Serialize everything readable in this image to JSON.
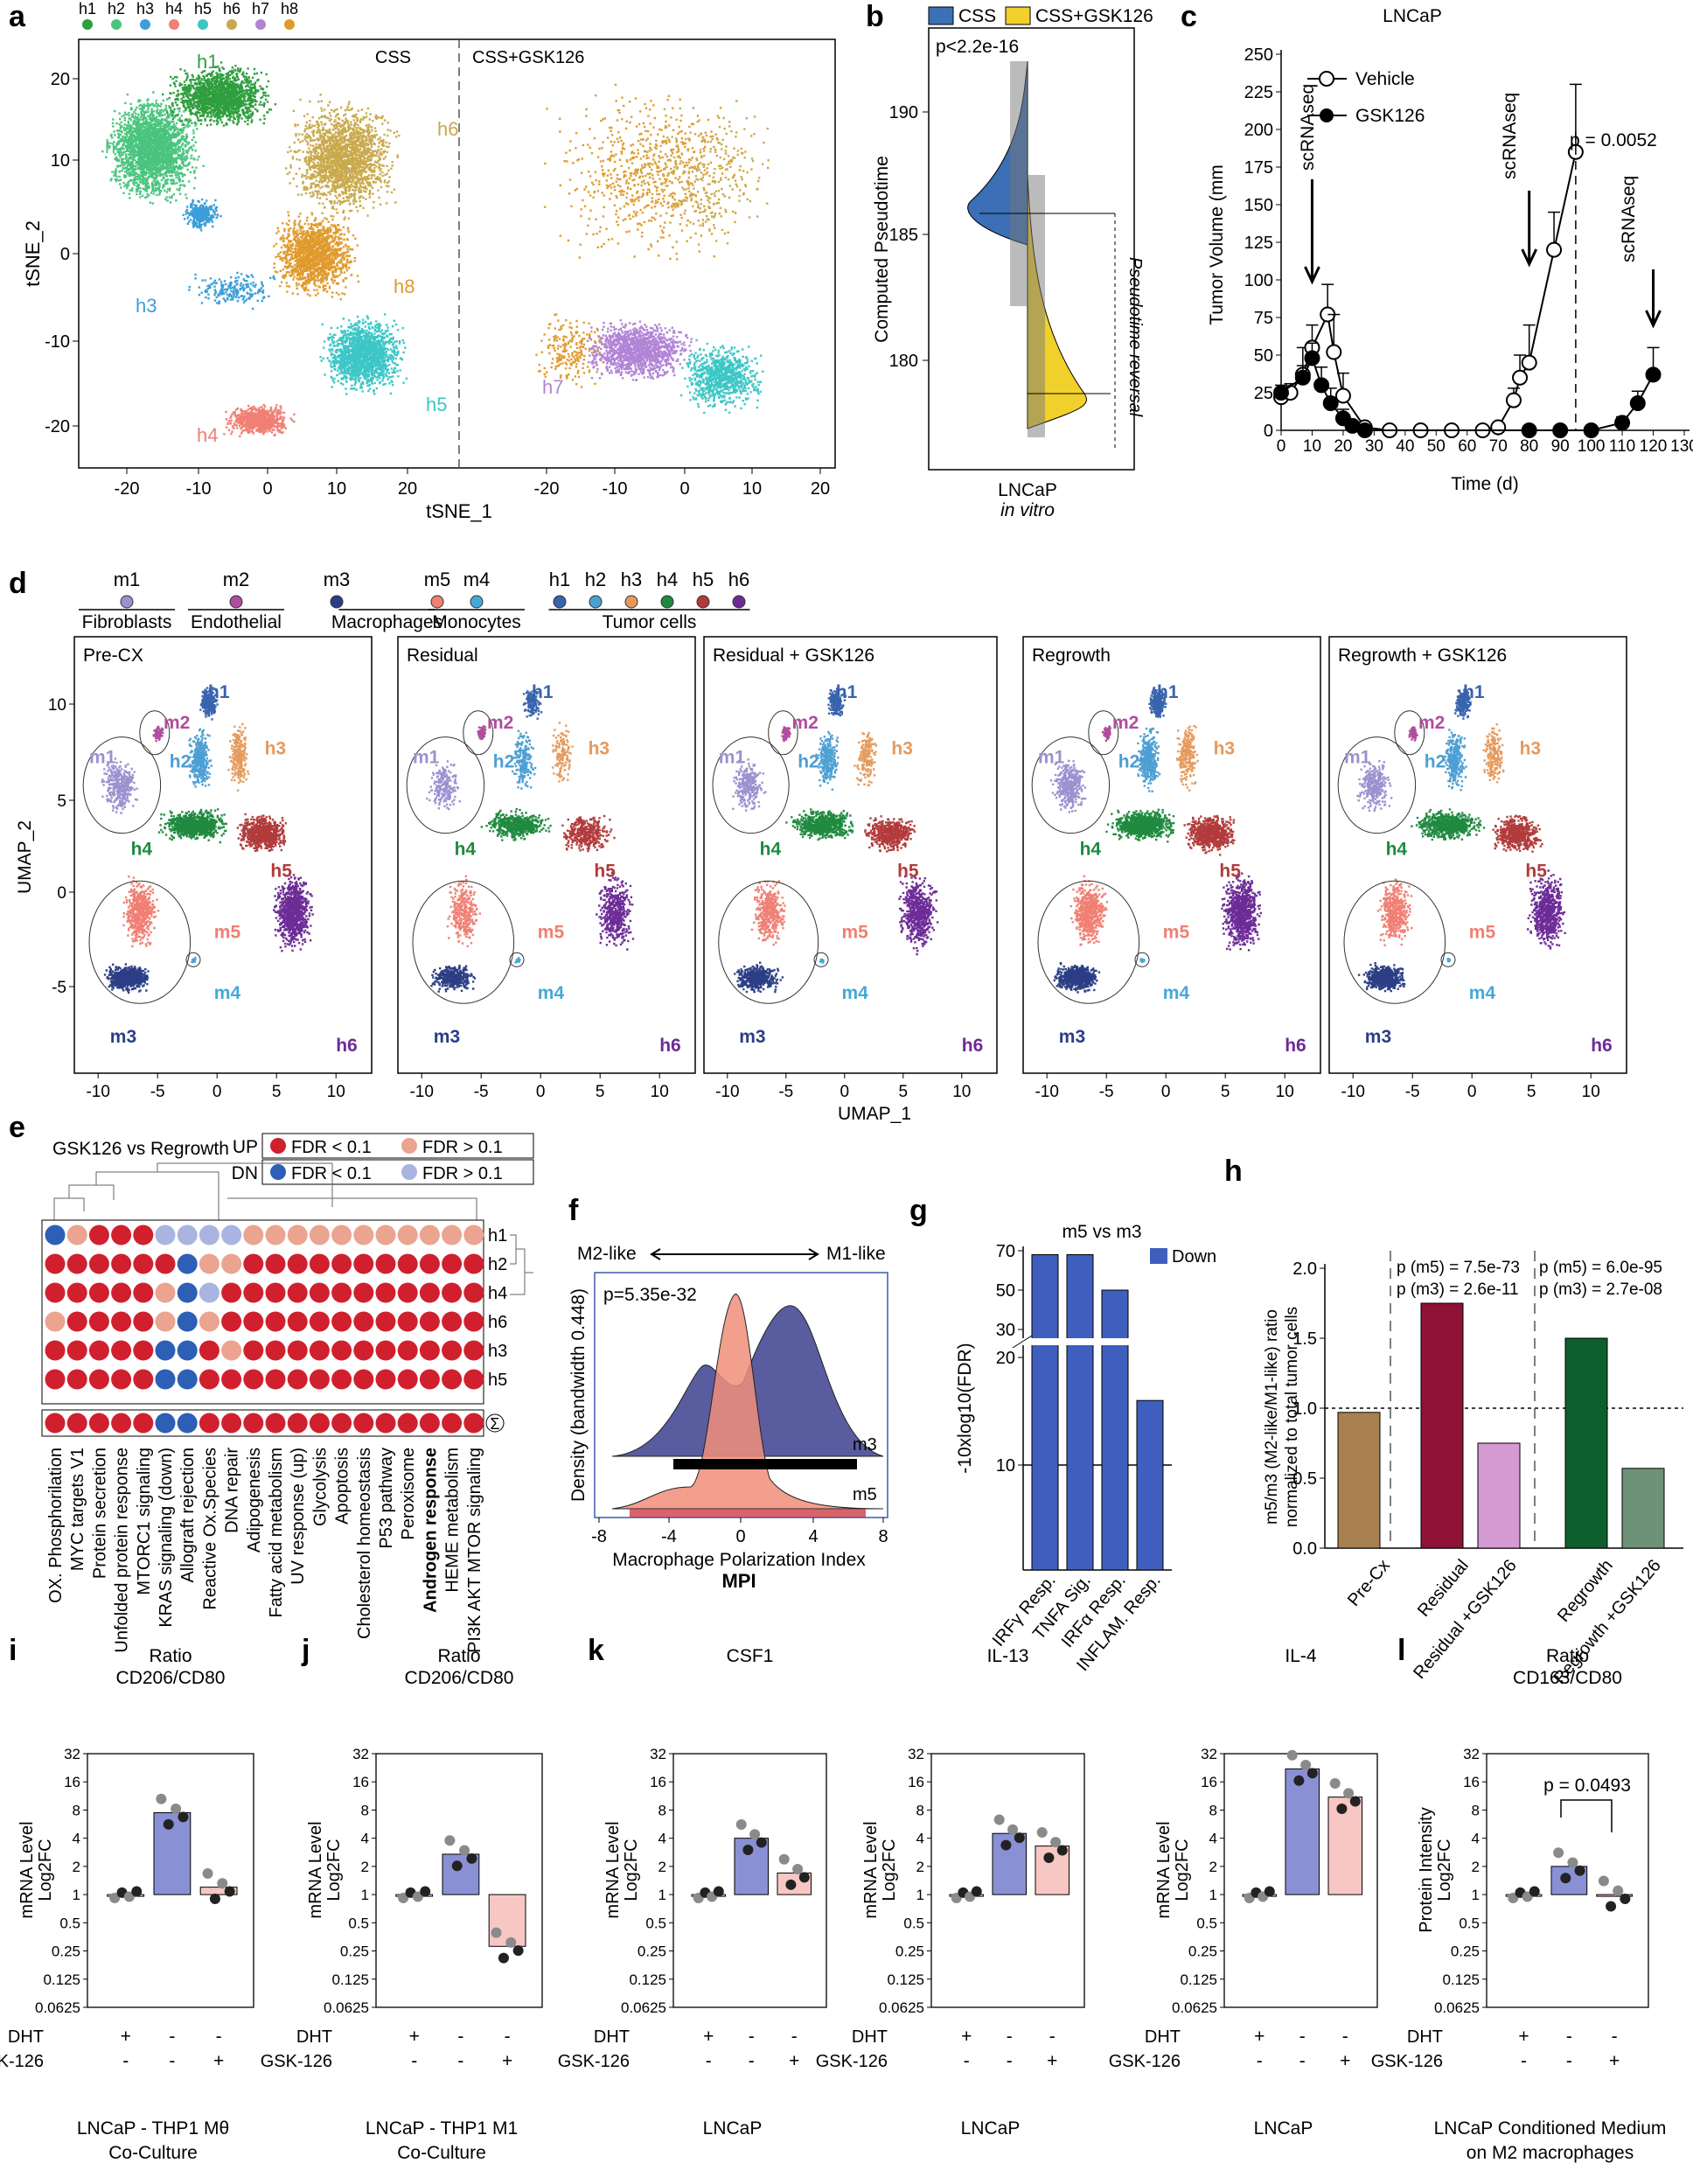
{
  "panel_letters": [
    "a",
    "b",
    "c",
    "d",
    "e",
    "f",
    "g",
    "h",
    "i",
    "j",
    "k",
    "l"
  ],
  "panel_a": {
    "legend": [
      "h1",
      "h2",
      "h3",
      "h4",
      "h5",
      "h6",
      "h7",
      "h8"
    ],
    "colors": [
      "#2e9e3e",
      "#49c47e",
      "#3a9ed8",
      "#f07f74",
      "#3cc6c6",
      "#c9a94b",
      "#b184d6",
      "#e09a2c"
    ],
    "left_title": "CSS",
    "right_title": "CSS+GSK126",
    "xlabel": "tSNE_1",
    "ylabel": "tSNE_2",
    "xticks": [
      "-20",
      "-10",
      "0",
      "10",
      "20"
    ],
    "yticks": [
      "20",
      "10",
      "0",
      "-10",
      "-20"
    ],
    "cluster_labels": [
      "h1",
      "h2",
      "h6",
      "h8",
      "h3",
      "h5",
      "h4",
      "h7"
    ]
  },
  "panel_b": {
    "legend": [
      "CSS",
      "CSS+GSK126"
    ],
    "colors": [
      "#3b6fb6",
      "#f2d02b"
    ],
    "pvalue": "p<2.2e-16",
    "ylabel": "Computed Pseudotime",
    "yticks": [
      "190",
      "185",
      "180"
    ],
    "xlabel": "LNCaP",
    "xlabel2": "in vitro",
    "annotation": "Pseudotime reversal"
  },
  "chart_data": {
    "type": "line",
    "title": "LNCaP",
    "xlabel": "Time (d)",
    "ylabel": "Tumor Volume (mm",
    "xlim": [
      0,
      130
    ],
    "ylim": [
      0,
      250
    ],
    "xticks": [
      "0",
      "10",
      "20",
      "30",
      "40",
      "50",
      "60",
      "70",
      "80",
      "90",
      "100",
      "110",
      "120",
      "130"
    ],
    "yticks": [
      "0",
      "25",
      "50",
      "75",
      "100",
      "125",
      "150",
      "175",
      "200",
      "225",
      "250"
    ],
    "series": [
      {
        "name": "Vehicle",
        "x": [
          0,
          3,
          7,
          10,
          15,
          17,
          20,
          27,
          35,
          45,
          55,
          65,
          70,
          75,
          77,
          80,
          88,
          95
        ],
        "y": [
          22,
          25,
          37,
          55,
          77,
          52,
          23,
          2,
          0,
          0,
          0,
          0,
          2,
          20,
          35,
          45,
          120,
          185
        ],
        "err": [
          4,
          6,
          18,
          15,
          20,
          25,
          15,
          2,
          0,
          0,
          0,
          0,
          2,
          8,
          15,
          25,
          25,
          45
        ]
      },
      {
        "name": "GSK126",
        "x": [
          0,
          7,
          10,
          13,
          16,
          20,
          23,
          27,
          80,
          90,
          100,
          110,
          115,
          120
        ],
        "y": [
          25,
          35,
          48,
          30,
          18,
          8,
          3,
          0,
          0,
          0,
          0,
          5,
          18,
          37
        ],
        "err": [
          5,
          8,
          10,
          12,
          10,
          6,
          2,
          0,
          0,
          0,
          0,
          4,
          8,
          18
        ]
      }
    ],
    "annotations": [
      "scRNAseq",
      "scRNAseq",
      "scRNAseq",
      "p = 0.0052"
    ]
  },
  "panel_d": {
    "legend_groups": [
      {
        "label": "Fibroblasts",
        "items": [
          "m1"
        ]
      },
      {
        "label": "Endothelial",
        "items": [
          "m2"
        ]
      },
      {
        "label": "Macrophages",
        "items": [
          "m3",
          "m5"
        ]
      },
      {
        "label": "Monocytes",
        "items": [
          "m4"
        ]
      },
      {
        "label": "Tumor cells",
        "items": [
          "h1",
          "h2",
          "h3",
          "h4",
          "h5",
          "h6"
        ]
      }
    ],
    "colors": {
      "m1": "#9c90cf",
      "m2": "#b04d9d",
      "m3": "#2b3e85",
      "m5": "#f07f74",
      "m4": "#46a8d6",
      "h1": "#3863ad",
      "h2": "#4c9fd3",
      "h3": "#e59a5d",
      "h4": "#1f8a3f",
      "h5": "#b23a3a",
      "h6": "#6c2b97"
    },
    "panels": [
      "Pre-CX",
      "Residual",
      "Residual + GSK126",
      "Regrowth",
      "Regrowth + GSK126"
    ],
    "xlabel": "UMAP_1",
    "ylabel": "UMAP_2",
    "xticks": [
      "-10",
      "-5",
      "0",
      "5",
      "10"
    ],
    "yticks": [
      "10",
      "5",
      "0",
      "-5"
    ],
    "cluster_labels": [
      "h1",
      "h2",
      "h3",
      "h4",
      "h5",
      "h6",
      "m1",
      "m2",
      "m3",
      "m4",
      "m5"
    ]
  },
  "panel_e": {
    "title": "GSK126 vs Regrowth",
    "legend": [
      {
        "dir": "UP",
        "sig": "FDR < 0.1",
        "ns": "FDR > 0.1",
        "sig_color": "#d0202e",
        "ns_color": "#eaa48f"
      },
      {
        "dir": "DN",
        "sig": "FDR < 0.1",
        "ns": "FDR > 0.1",
        "sig_color": "#2c5fb5",
        "ns_color": "#a9b4e0"
      }
    ],
    "rows": [
      "h1",
      "h2",
      "h4",
      "h6",
      "h3",
      "h5"
    ],
    "sum_symbol": "Σ",
    "pathways": [
      "OX. Phosphorilation",
      "MYC targets V1",
      "Protein secretion",
      "Unfolded protein response",
      "MTORC1 signaling",
      "KRAS signaling (down)",
      "Allograft rejection",
      "Reactive Ox.Species",
      "DNA repair",
      "Adipogenesis",
      "Fatty acid metabolism",
      "UV response (up)",
      "Glycolysis",
      "Apoptosis",
      "Cholesterol homeostasis",
      "P53 pathway",
      "Peroxisome",
      "Androgen response",
      "HEME metabolism",
      "PI3K AKT MTOR signaling"
    ],
    "matrix": [
      [
        "DS",
        "UN",
        "US",
        "US",
        "US",
        "DN",
        "DN",
        "DN",
        "DN",
        "UN",
        "UN",
        "UN",
        "UN",
        "UN",
        "UN",
        "UN",
        "UN",
        "UN",
        "UN",
        "UN"
      ],
      [
        "US",
        "US",
        "US",
        "US",
        "US",
        "US",
        "DS",
        "UN",
        "UN",
        "US",
        "US",
        "US",
        "US",
        "US",
        "US",
        "US",
        "US",
        "US",
        "US",
        "US"
      ],
      [
        "US",
        "US",
        "US",
        "US",
        "US",
        "UN",
        "DS",
        "DN",
        "US",
        "US",
        "US",
        "US",
        "US",
        "US",
        "US",
        "US",
        "US",
        "US",
        "US",
        "US"
      ],
      [
        "UN",
        "US",
        "US",
        "US",
        "US",
        "UN",
        "DS",
        "UN",
        "US",
        "US",
        "US",
        "US",
        "US",
        "US",
        "US",
        "US",
        "US",
        "US",
        "US",
        "US"
      ],
      [
        "US",
        "US",
        "US",
        "US",
        "US",
        "DS",
        "DS",
        "US",
        "UN",
        "US",
        "US",
        "US",
        "US",
        "US",
        "US",
        "US",
        "US",
        "US",
        "US",
        "US"
      ],
      [
        "US",
        "US",
        "US",
        "US",
        "US",
        "DS",
        "DS",
        "US",
        "US",
        "US",
        "US",
        "US",
        "US",
        "US",
        "US",
        "US",
        "US",
        "US",
        "US",
        "US"
      ]
    ],
    "sum_row": [
      "US",
      "US",
      "US",
      "US",
      "US",
      "DS",
      "DS",
      "US",
      "US",
      "US",
      "US",
      "US",
      "US",
      "US",
      "US",
      "US",
      "US",
      "US",
      "US",
      "US"
    ]
  },
  "panel_f": {
    "left": "M2-like",
    "right": "M1-like",
    "pvalue": "p=5.35e-32",
    "ylabel": "Density (bandwidth 0.448)",
    "xlabel": "Macrophage Polarization Index",
    "xlabel2": "MPI",
    "xticks": [
      "-8",
      "-4",
      "0",
      "4",
      "8"
    ],
    "series": [
      "m3",
      "m5"
    ],
    "colors": [
      "#3c3f8e",
      "#f08e7a"
    ]
  },
  "panel_g": {
    "title": "m5 vs m3",
    "legend": "Down",
    "ylabel": "-10xlog10(FDR)",
    "yticks": [
      "70",
      "50",
      "30",
      "20",
      "10"
    ],
    "categories": [
      "IRFγ Resp.",
      "TNFA Sig.",
      "IRFα Resp.",
      "INFLAM. Resp."
    ],
    "values": [
      68,
      68,
      50,
      16
    ],
    "color": "#3f5ebd"
  },
  "panel_h": {
    "ylabel": "m5/m3 (M2-like/M1-like) ratio",
    "ylabel2": "normalized to total tumor cells",
    "yticks": [
      "2.0",
      "1.5",
      "1.0",
      "0.5",
      "0.0"
    ],
    "categories": [
      "Pre-Cx",
      "Residual",
      "Residual +GSK126",
      "Regrowth",
      "Regrowth +GSK126"
    ],
    "values": [
      0.97,
      1.75,
      0.75,
      1.5,
      0.57
    ],
    "colors": [
      "#a8804f",
      "#8e1236",
      "#d59ad2",
      "#0f5e2d",
      "#6e9178"
    ],
    "annot1": [
      "p (m5) = 7.5e-73",
      "p (m3) = 2.6e-11"
    ],
    "annot2": [
      "p (m5) = 6.0e-95",
      "p (m3) = 2.7e-08"
    ]
  },
  "bar_panels": {
    "yticks": [
      "32",
      "16",
      "8",
      "4",
      "2",
      "1",
      "0.5",
      "0.25",
      "0.125",
      "0.0625"
    ],
    "dht_label": "DHT",
    "gsk_label": "GSK-126",
    "row_dht": [
      "+",
      "-",
      "-"
    ],
    "row_gsk": [
      "-",
      "-",
      "+"
    ]
  },
  "panel_i": {
    "title1": "Ratio",
    "title2": "CD206/CD80",
    "ylabel1": "mRNA Level",
    "ylabel2": "Log2FC",
    "values": [
      1,
      7.5,
      1.2
    ],
    "caption1": "LNCaP - THP1 Mθ",
    "caption2": "Co-Culture"
  },
  "panel_j": {
    "title1": "Ratio",
    "title2": "CD206/CD80",
    "ylabel1": "mRNA Level",
    "ylabel2": "Log2FC",
    "values": [
      1,
      2.7,
      0.28
    ],
    "caption1": "LNCaP - THP1 M1",
    "caption2": "Co-Culture"
  },
  "panel_k": {
    "ylabel1": "mRNA Level",
    "ylabel2": "Log2FC",
    "caption": "LNCaP",
    "charts": [
      {
        "title": "CSF1",
        "values": [
          1,
          4,
          1.7
        ]
      },
      {
        "title": "IL-13",
        "values": [
          1,
          4.5,
          3.3
        ]
      },
      {
        "title": "IL-4",
        "values": [
          1,
          22,
          11
        ]
      }
    ]
  },
  "panel_l": {
    "title1": "Ratio",
    "title2": "CD163/CD80",
    "ylabel1": "Protein Intensity",
    "ylabel2": "Log2FC",
    "values": [
      1,
      2,
      1
    ],
    "pvalue": "p = 0.0493",
    "caption1": "LNCaP Conditioned Medium",
    "caption2": "on M2 macrophages"
  }
}
